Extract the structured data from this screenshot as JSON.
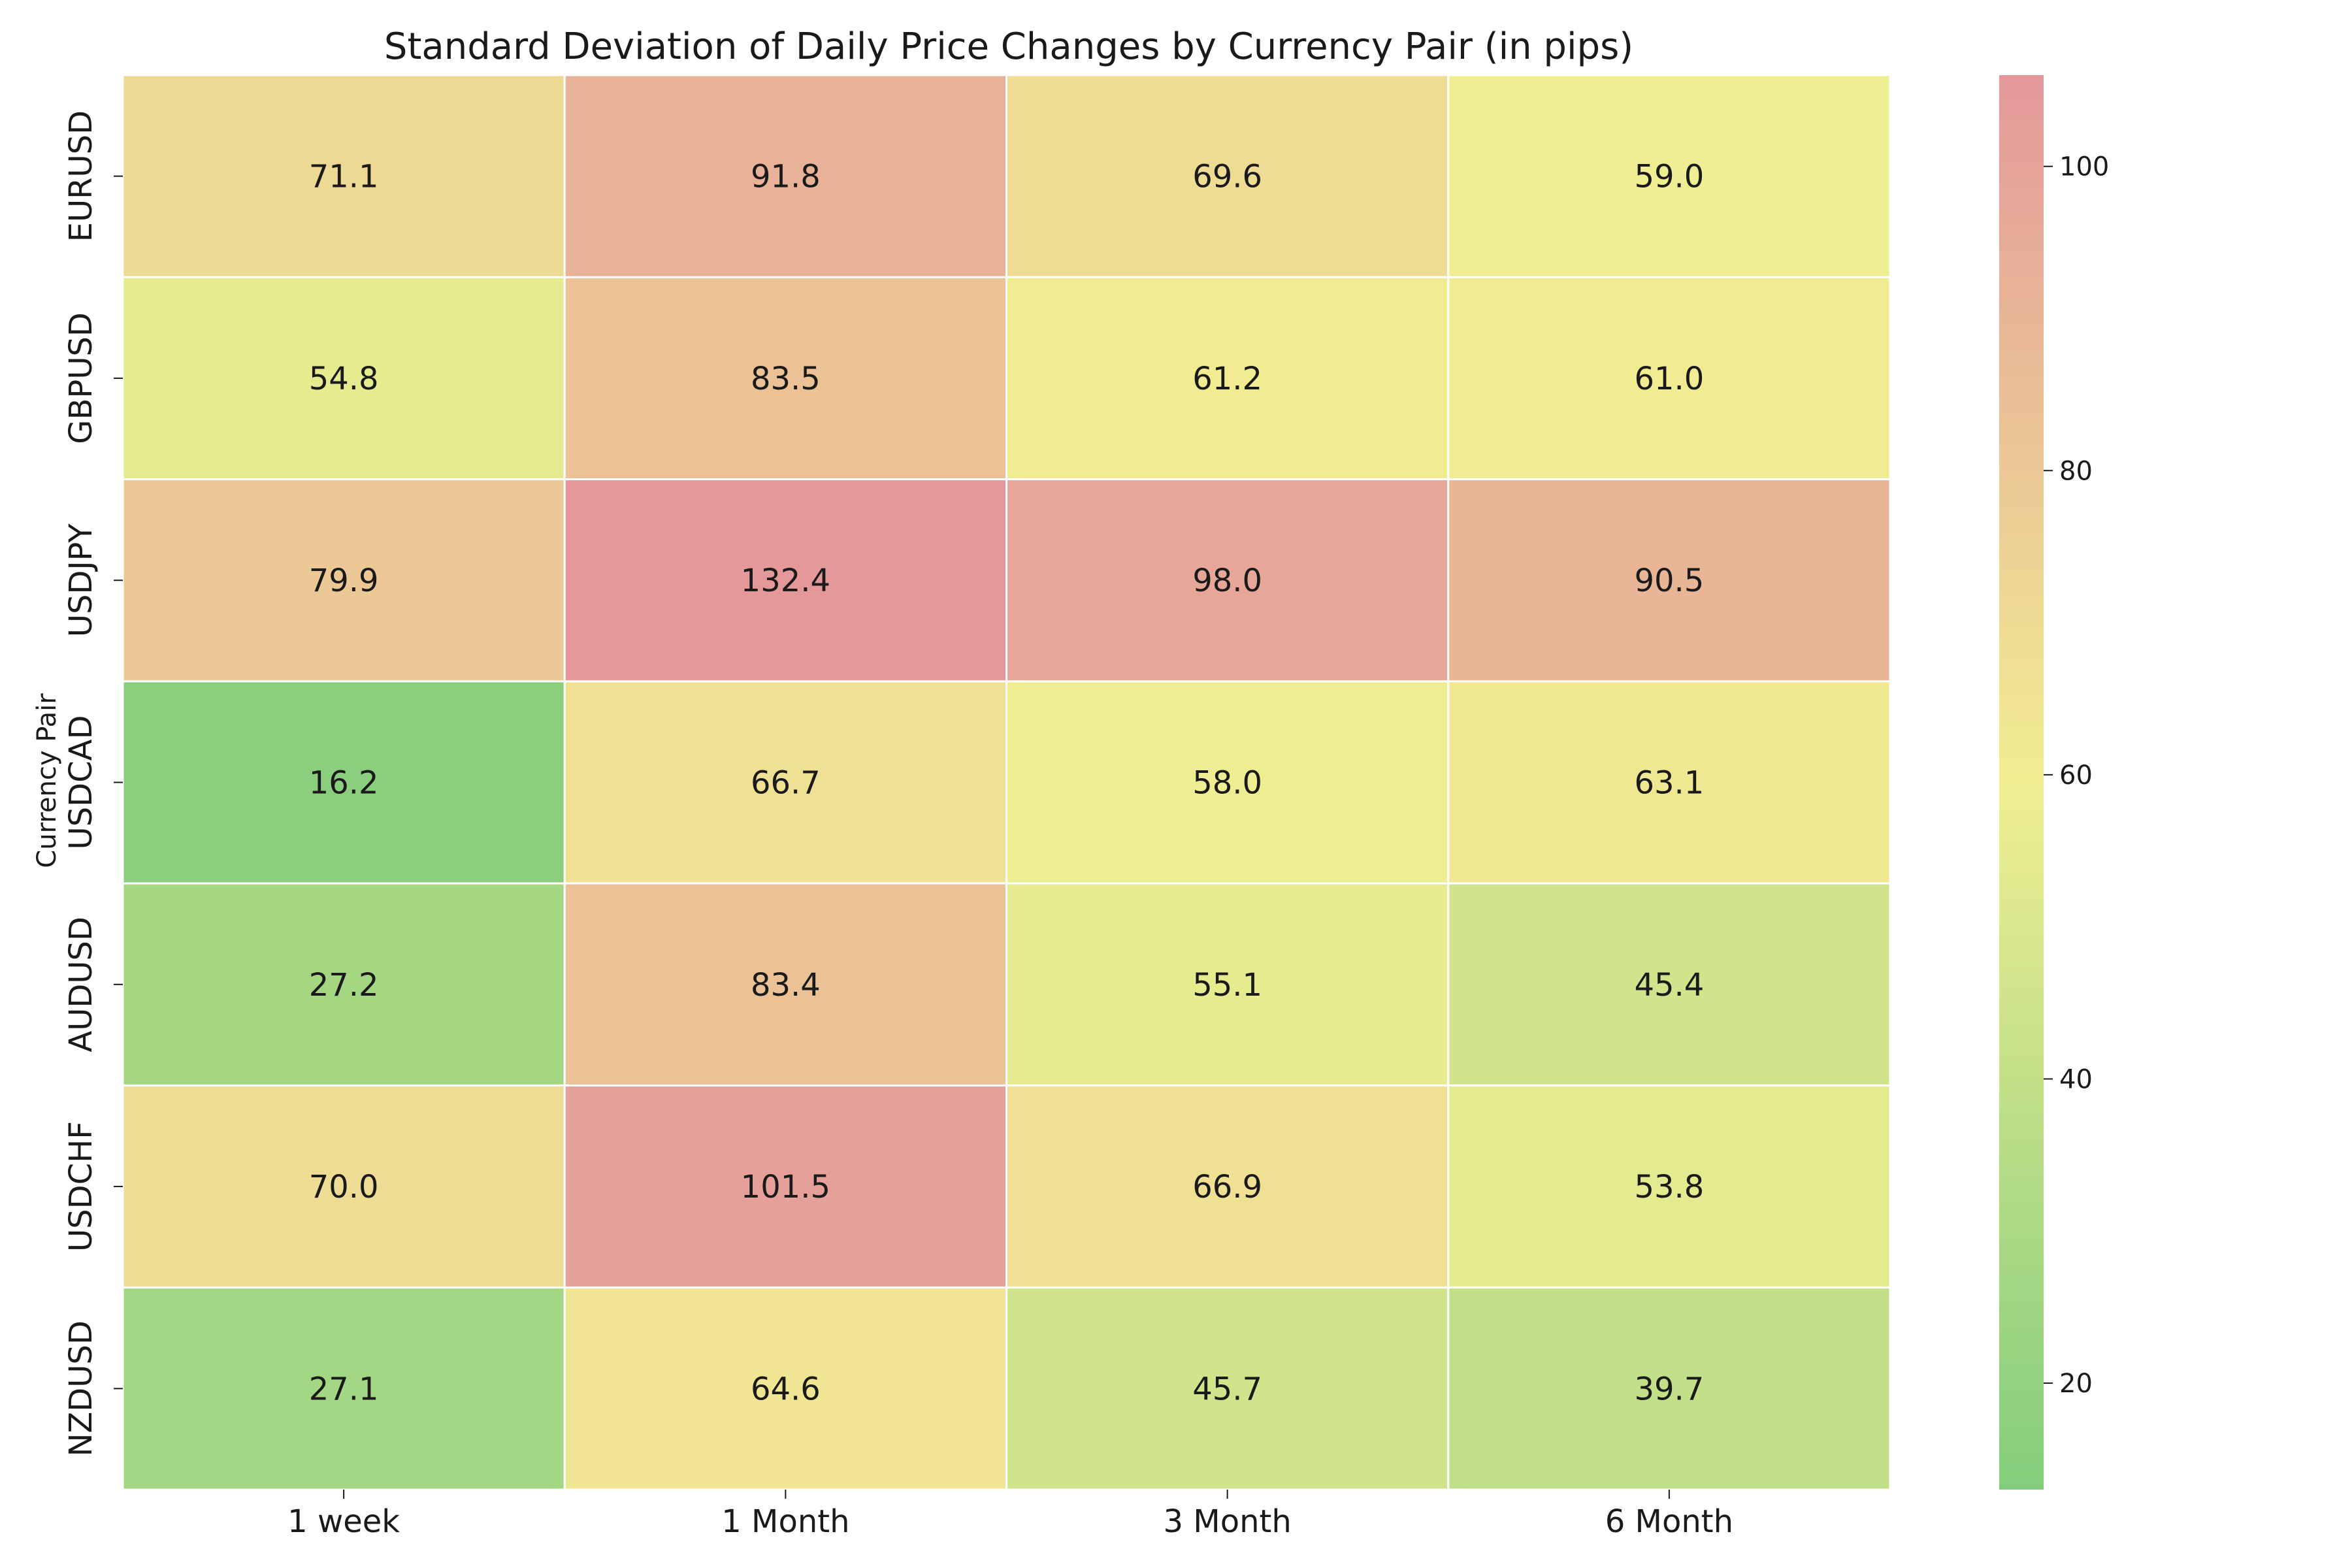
{
  "chart_data": {
    "type": "heatmap",
    "title": "Standard Deviation of Daily Price Changes by Currency Pair (in pips)",
    "xlabel": "",
    "ylabel": "Currency Pair",
    "columns": [
      "1 week",
      "1 Month",
      "3 Month",
      "6 Month"
    ],
    "rows": [
      "EURUSD",
      "GBPUSD",
      "USDJPY",
      "USDCAD",
      "AUDUSD",
      "USDCHF",
      "NZDUSD"
    ],
    "values": [
      [
        71.1,
        91.8,
        69.6,
        59.0
      ],
      [
        54.8,
        83.5,
        61.2,
        61.0
      ],
      [
        79.9,
        132.4,
        98.0,
        90.5
      ],
      [
        16.2,
        66.7,
        58.0,
        63.1
      ],
      [
        27.2,
        83.4,
        55.1,
        45.4
      ],
      [
        70.0,
        101.5,
        66.9,
        53.8
      ],
      [
        27.1,
        64.6,
        45.7,
        39.7
      ]
    ],
    "value_labels": [
      [
        "71.1",
        "91.8",
        "69.6",
        "59.0"
      ],
      [
        "54.8",
        "83.5",
        "61.2",
        "61.0"
      ],
      [
        "79.9",
        "132.4",
        "98.0",
        "90.5"
      ],
      [
        "16.2",
        "66.7",
        "58.0",
        "63.1"
      ],
      [
        "27.2",
        "83.4",
        "55.1",
        "45.4"
      ],
      [
        "70.0",
        "101.5",
        "66.9",
        "53.8"
      ],
      [
        "27.1",
        "64.6",
        "45.7",
        "39.7"
      ]
    ],
    "colorbar": {
      "range": [
        13,
        106
      ],
      "ticks": [
        20,
        40,
        60,
        80,
        100
      ],
      "tick_labels": [
        "20",
        "40",
        "60",
        "80",
        "100"
      ],
      "colors": [
        "#83cd7c",
        "#f1ee92",
        "#e4989a"
      ]
    },
    "grid_line_color": "#ffffff"
  }
}
